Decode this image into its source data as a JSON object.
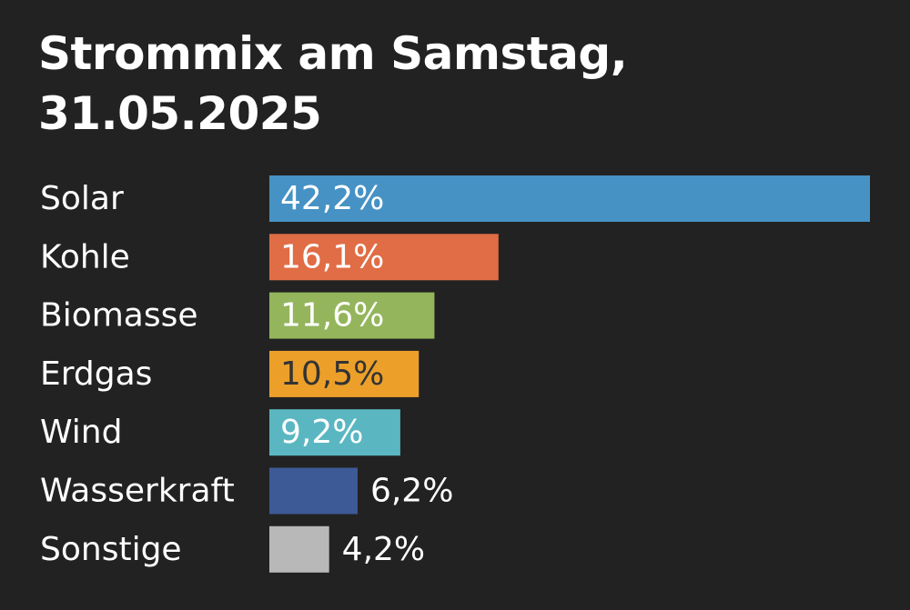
{
  "chart_data": {
    "type": "bar",
    "orientation": "horizontal",
    "title_line1": "Strommix am Samstag,",
    "title_line2": "31.05.2025",
    "categories": [
      "Solar",
      "Kohle",
      "Biomasse",
      "Erdgas",
      "Wind",
      "Wasserkraft",
      "Sonstige"
    ],
    "values": [
      42.2,
      16.1,
      11.6,
      10.5,
      9.2,
      6.2,
      4.2
    ],
    "value_labels": [
      "42,2%",
      "16,1%",
      "11,6%",
      "10,5%",
      "9,2%",
      "6,2%",
      "4,2%"
    ],
    "colors": [
      "#4692c4",
      "#e06d45",
      "#94b55c",
      "#eca02a",
      "#5ab7c2",
      "#3d5a96",
      "#b8b8b8"
    ],
    "value_label_colors": [
      "#ffffff",
      "#ffffff",
      "#ffffff",
      "#333333",
      "#ffffff",
      "#ffffff",
      "#ffffff"
    ],
    "xlim": [
      0,
      42.2
    ],
    "grid": false,
    "legend": "none",
    "background": "#222222"
  }
}
